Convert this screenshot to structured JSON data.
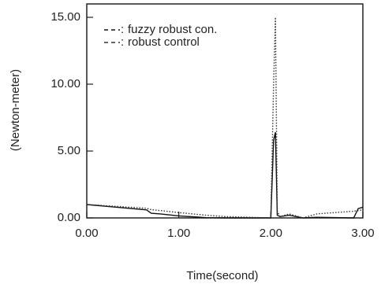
{
  "chart_data": {
    "type": "line",
    "xlabel": "Time(second)",
    "ylabel": "(Newton-meter)",
    "x": [
      0,
      0.65,
      0.7,
      0.8,
      1.0,
      1.3,
      1.5,
      2.0,
      2.03,
      2.05,
      2.07,
      2.1,
      2.2,
      2.35,
      2.5,
      2.9,
      2.95,
      3.0
    ],
    "series": [
      {
        "name": "fuzzy robust con.",
        "color": "#111111",
        "dash": "solid",
        "values": [
          1.0,
          0.6,
          0.35,
          0.3,
          0.15,
          0.02,
          0,
          0,
          5.8,
          6.4,
          0.2,
          0.1,
          0.2,
          0,
          0.05,
          0,
          0.7,
          0.8
        ]
      },
      {
        "name": "robust control",
        "color": "#333333",
        "dash": "dotted",
        "values": [
          1.0,
          0.72,
          0.62,
          0.55,
          0.4,
          0.2,
          0.1,
          0,
          10,
          15,
          0.5,
          0.1,
          0.3,
          0,
          0.3,
          0.5,
          0.55,
          0.6
        ]
      }
    ],
    "xlim": [
      0,
      3
    ],
    "ylim": [
      0,
      16
    ],
    "xticks": [
      {
        "value": 0,
        "label": "0.00"
      },
      {
        "value": 1,
        "label": "1.00"
      },
      {
        "value": 2,
        "label": "2.00"
      },
      {
        "value": 3,
        "label": "3.00"
      }
    ],
    "yticks": [
      {
        "value": 0,
        "label": "0.00"
      },
      {
        "value": 5,
        "label": "5.00"
      },
      {
        "value": 10,
        "label": "10.00"
      },
      {
        "value": 15,
        "label": "15.00"
      }
    ],
    "legend": "upper left"
  }
}
